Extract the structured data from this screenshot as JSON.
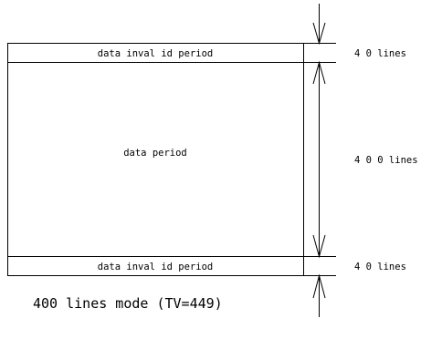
{
  "diagram": {
    "top_band_label": "data inval id period",
    "main_label": "data period",
    "bottom_band_label": "data inval id period",
    "top_band_lines": "4 0 lines",
    "main_lines": "4 0 0 lines",
    "bottom_band_lines": "4 0 lines",
    "caption": "400 lines mode (TV=449)"
  }
}
